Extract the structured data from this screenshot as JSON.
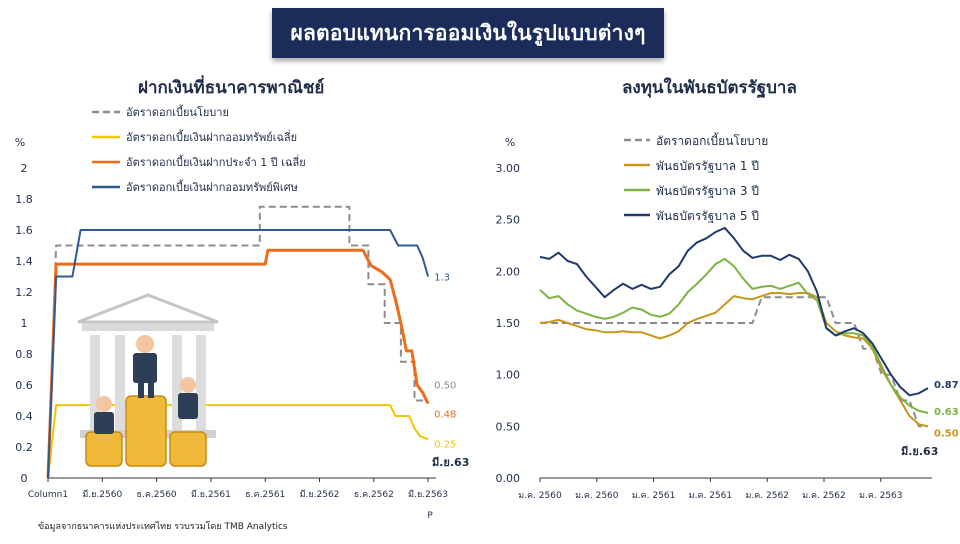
{
  "title": "ผลตอบแทนการออมเงินในรูปแบบต่างๆ",
  "source": "ข้อมูลจากธนาคารแห่งประเทศไทย  รวบรวมโดย TMB Analytics",
  "colors": {
    "title_bg": "#1b2c5a",
    "policy": "#8c8c8c",
    "savings_avg": "#f5c400",
    "fixed_1y": "#ef6b1a",
    "special_savings": "#2f5b93",
    "bond_1y": "#c8961c",
    "bond_3y": "#7cb342",
    "bond_5y": "#1f3a6e"
  },
  "chart_data": [
    {
      "type": "line",
      "title": "ฝากเงินที่ธนาคารพาณิชย์",
      "ylabel": "%",
      "ylim": [
        0,
        2
      ],
      "yticks": [
        "0",
        "0.2",
        "0.4",
        "0.6",
        "0.8",
        "1",
        "1.2",
        "1.4",
        "1.6",
        "1.8",
        "2"
      ],
      "xticks": [
        "Column1",
        "มี.ย.2560",
        "ธ.ค.2560",
        "มี.ย.2561",
        "ธ.ค.2561",
        "มี.ย.2562",
        "ธ.ค.2562",
        "มี.ย.2563"
      ],
      "x_axis_footer": "P",
      "end_label": "มี.ย.63",
      "legend_position": "top-center",
      "series": [
        {
          "name": "อัตราดอกเบี้ยนโยบาย",
          "color_key": "policy",
          "dash": true,
          "end_value_label": "0.50",
          "points": [
            [
              0,
              0
            ],
            [
              0.15,
              1.5
            ],
            [
              3.9,
              1.5
            ],
            [
              3.9,
              1.75
            ],
            [
              5.55,
              1.75
            ],
            [
              5.55,
              1.5
            ],
            [
              5.9,
              1.5
            ],
            [
              5.9,
              1.25
            ],
            [
              6.2,
              1.25
            ],
            [
              6.2,
              1.0
            ],
            [
              6.5,
              1.0
            ],
            [
              6.5,
              0.75
            ],
            [
              6.75,
              0.75
            ],
            [
              6.75,
              0.5
            ],
            [
              7.0,
              0.5
            ]
          ]
        },
        {
          "name": "อัตราดอกเบี้ยเงินฝากออมทรัพย์เฉลี่ย",
          "color_key": "savings_avg",
          "dash": false,
          "end_value_label": "0.25",
          "points": [
            [
              0,
              0
            ],
            [
              0.15,
              0.47
            ],
            [
              6.3,
              0.47
            ],
            [
              6.4,
              0.4
            ],
            [
              6.65,
              0.4
            ],
            [
              6.75,
              0.32
            ],
            [
              6.85,
              0.27
            ],
            [
              7.0,
              0.25
            ]
          ]
        },
        {
          "name": "อัตราดอกเบี้ยเงินฝากประจำ 1 ปี เฉลี่ย",
          "color_key": "fixed_1y",
          "dash": false,
          "end_value_label": "0.48",
          "points": [
            [
              0,
              0
            ],
            [
              0.15,
              1.38
            ],
            [
              4.0,
              1.38
            ],
            [
              4.05,
              1.47
            ],
            [
              5.8,
              1.47
            ],
            [
              5.95,
              1.37
            ],
            [
              6.15,
              1.33
            ],
            [
              6.3,
              1.28
            ],
            [
              6.4,
              1.15
            ],
            [
              6.5,
              1.0
            ],
            [
              6.6,
              0.82
            ],
            [
              6.7,
              0.82
            ],
            [
              6.8,
              0.6
            ],
            [
              6.9,
              0.55
            ],
            [
              7.0,
              0.48
            ]
          ]
        },
        {
          "name": "อัตราดอกเบี้ยเงินฝากออมทรัพย์พิเศษ",
          "color_key": "special_savings",
          "dash": false,
          "end_value_label": "1.3",
          "points": [
            [
              0,
              0
            ],
            [
              0.15,
              1.3
            ],
            [
              0.45,
              1.3
            ],
            [
              0.6,
              1.6
            ],
            [
              6.3,
              1.6
            ],
            [
              6.45,
              1.5
            ],
            [
              6.8,
              1.5
            ],
            [
              6.9,
              1.42
            ],
            [
              7.0,
              1.3
            ]
          ]
        }
      ]
    },
    {
      "type": "line",
      "title": "ลงทุนในพันธบัตรรัฐบาล",
      "ylabel": "%",
      "ylim": [
        0,
        3
      ],
      "yticks": [
        "0.00",
        "0.50",
        "1.00",
        "1.50",
        "2.00",
        "2.50",
        "3.00"
      ],
      "xticks": [
        "ม.ค. 2560",
        "ม.ค. 2560",
        "ม.ค. 2561",
        "ม.ค. 2561",
        "ม.ค. 2562",
        "ม.ค. 2562",
        "ม.ค. 2563"
      ],
      "end_label": "มี.ย.63",
      "legend_position": "top-center",
      "series": [
        {
          "name": "อัตราดอกเบี้ยนโยบาย",
          "color_key": "policy",
          "dash": true,
          "end_value_label": "",
          "values": [
            1.5,
            1.5,
            1.5,
            1.5,
            1.5,
            1.5,
            1.5,
            1.5,
            1.5,
            1.5,
            1.5,
            1.5,
            1.5,
            1.5,
            1.5,
            1.5,
            1.5,
            1.5,
            1.5,
            1.5,
            1.5,
            1.5,
            1.5,
            1.5,
            1.75,
            1.75,
            1.75,
            1.75,
            1.75,
            1.75,
            1.75,
            1.75,
            1.5,
            1.5,
            1.5,
            1.25,
            1.25,
            1.0,
            1.0,
            0.75,
            0.75,
            0.5,
            0.5
          ]
        },
        {
          "name": "พันธบัตรรัฐบาล 1 ปี",
          "color_key": "bond_1y",
          "dash": false,
          "end_value_label": "0.50",
          "values": [
            1.5,
            1.51,
            1.53,
            1.5,
            1.47,
            1.44,
            1.43,
            1.41,
            1.41,
            1.42,
            1.41,
            1.41,
            1.38,
            1.35,
            1.38,
            1.42,
            1.5,
            1.54,
            1.57,
            1.6,
            1.68,
            1.76,
            1.74,
            1.73,
            1.76,
            1.79,
            1.79,
            1.78,
            1.79,
            1.79,
            1.75,
            1.5,
            1.42,
            1.38,
            1.36,
            1.35,
            1.25,
            1.05,
            0.9,
            0.75,
            0.6,
            0.52,
            0.5
          ]
        },
        {
          "name": "พันธบัตรรัฐบาล 3 ปี",
          "color_key": "bond_3y",
          "dash": false,
          "end_value_label": "0.63",
          "values": [
            1.82,
            1.74,
            1.76,
            1.68,
            1.62,
            1.59,
            1.56,
            1.54,
            1.56,
            1.6,
            1.65,
            1.63,
            1.58,
            1.56,
            1.59,
            1.68,
            1.8,
            1.88,
            1.97,
            2.07,
            2.12,
            2.05,
            1.93,
            1.83,
            1.85,
            1.86,
            1.83,
            1.86,
            1.89,
            1.78,
            1.72,
            1.45,
            1.38,
            1.4,
            1.4,
            1.38,
            1.27,
            1.08,
            0.9,
            0.78,
            0.7,
            0.65,
            0.63
          ]
        },
        {
          "name": "พันธบัตรรัฐบาล 5 ปี",
          "color_key": "bond_5y",
          "dash": false,
          "end_value_label": "0.87",
          "values": [
            2.14,
            2.12,
            2.18,
            2.1,
            2.07,
            1.95,
            1.85,
            1.75,
            1.82,
            1.88,
            1.83,
            1.87,
            1.83,
            1.85,
            1.97,
            2.05,
            2.2,
            2.28,
            2.32,
            2.38,
            2.42,
            2.32,
            2.2,
            2.13,
            2.15,
            2.15,
            2.11,
            2.16,
            2.12,
            2.0,
            1.8,
            1.45,
            1.38,
            1.42,
            1.45,
            1.4,
            1.3,
            1.15,
            1.0,
            0.88,
            0.8,
            0.82,
            0.87
          ]
        }
      ]
    }
  ]
}
